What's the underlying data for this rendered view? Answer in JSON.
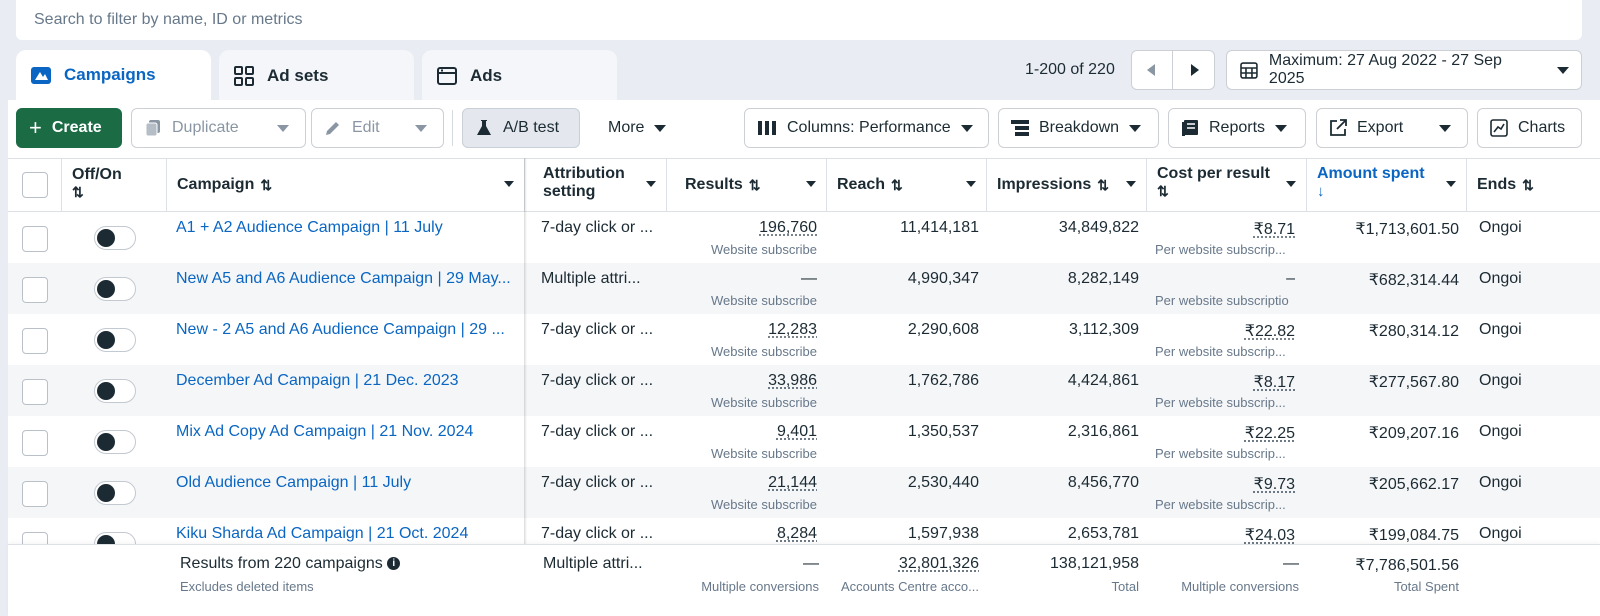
{
  "search": {
    "placeholder": "Search to filter by name, ID or metrics"
  },
  "tabs": [
    {
      "label": "Campaigns",
      "icon": "campaigns-icon"
    },
    {
      "label": "Ad sets",
      "icon": "grid-icon"
    },
    {
      "label": "Ads",
      "icon": "ad-frame-icon"
    }
  ],
  "pager": {
    "label": "1-200 of 220"
  },
  "date_range": {
    "label": "Maximum: 27 Aug 2022 - 27 Sep 2025"
  },
  "toolbar": {
    "create": "Create",
    "duplicate": "Duplicate",
    "edit": "Edit",
    "ab_test": "A/B test",
    "more": "More",
    "columns": "Columns: Performance",
    "breakdown": "Breakdown",
    "reports": "Reports",
    "export": "Export",
    "charts": "Charts"
  },
  "columns": {
    "offon": "Off/On",
    "campaign": "Campaign",
    "attribution_1": "Attribution",
    "attribution_2": "setting",
    "results": "Results",
    "reach": "Reach",
    "impressions": "Impressions",
    "cpr": "Cost per result",
    "amount": "Amount spent",
    "ends": "Ends"
  },
  "rows": [
    {
      "campaign": "A1 + A2 Audience Campaign | 11 July",
      "attribution": "7-day click or ...",
      "results": "196,760",
      "results_sub": "Website subscribe",
      "reach": "11,414,181",
      "impressions": "34,849,822",
      "cpr": "₹8.71",
      "cpr_sub": "Per website subscrip...",
      "amount": "₹1,713,601.50",
      "ends": "Ongoi"
    },
    {
      "campaign": "New A5 and A6 Audience Campaign | 29 May...",
      "attribution": "Multiple attri...",
      "results": "—",
      "results_sub": "Website subscribe",
      "reach": "4,990,347",
      "impressions": "8,282,149",
      "cpr": "–",
      "cpr_sub": "Per website subscriptio",
      "amount": "₹682,314.44",
      "ends": "Ongoi"
    },
    {
      "campaign": "New - 2 A5 and A6 Audience Campaign | 29 ...",
      "attribution": "7-day click or ...",
      "results": "12,283",
      "results_sub": "Website subscribe",
      "reach": "2,290,608",
      "impressions": "3,112,309",
      "cpr": "₹22.82",
      "cpr_sub": "Per website subscrip...",
      "amount": "₹280,314.12",
      "ends": "Ongoi"
    },
    {
      "campaign": "December Ad Campaign | 21 Dec. 2023",
      "attribution": "7-day click or ...",
      "results": "33,986",
      "results_sub": "Website subscribe",
      "reach": "1,762,786",
      "impressions": "4,424,861",
      "cpr": "₹8.17",
      "cpr_sub": "Per website subscrip...",
      "amount": "₹277,567.80",
      "ends": "Ongoi"
    },
    {
      "campaign": "Mix Ad Copy Ad Campaign | 21 Nov. 2024",
      "attribution": "7-day click or ...",
      "results": "9,401",
      "results_sub": "Website subscribe",
      "reach": "1,350,537",
      "impressions": "2,316,861",
      "cpr": "₹22.25",
      "cpr_sub": "Per website subscrip...",
      "amount": "₹209,207.16",
      "ends": "Ongoi"
    },
    {
      "campaign": "Old Audience Campaign | 11 July",
      "attribution": "7-day click or ...",
      "results": "21,144",
      "results_sub": "Website subscribe",
      "reach": "2,530,440",
      "impressions": "8,456,770",
      "cpr": "₹9.73",
      "cpr_sub": "Per website subscrip...",
      "amount": "₹205,662.17",
      "ends": "Ongoi"
    },
    {
      "campaign": "Kiku Sharda Ad Campaign | 21 Oct. 2024",
      "attribution": "7-day click or ...",
      "results": "8,284",
      "results_sub": "",
      "reach": "1,597,938",
      "impressions": "2,653,781",
      "cpr": "₹24.03",
      "cpr_sub": "",
      "amount": "₹199,084.75",
      "ends": "Ongoi"
    }
  ],
  "footer": {
    "title": "Results from 220 campaigns",
    "subtitle": "Excludes deleted items",
    "attribution": "Multiple attri...",
    "results": "—",
    "results_sub": "Multiple conversions",
    "reach": "32,801,326",
    "reach_sub": "Accounts Centre acco...",
    "impressions": "138,121,958",
    "impressions_sub": "Total",
    "cpr": "—",
    "cpr_sub": "Multiple conversions",
    "amount": "₹7,786,501.56",
    "amount_sub": "Total Spent"
  },
  "colors": {
    "accent": "#0a66c2",
    "create": "#1b6b45"
  }
}
